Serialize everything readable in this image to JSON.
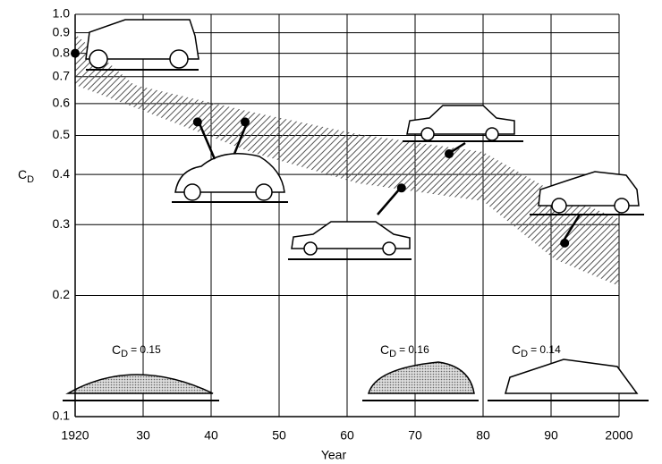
{
  "chart_data": {
    "type": "scatter",
    "x": [
      1920,
      1938,
      1945,
      1968,
      1975,
      1992
    ],
    "values": [
      0.8,
      0.54,
      0.54,
      0.37,
      0.45,
      0.27
    ],
    "color": "#000000",
    "x_label": "Year",
    "y_label": {
      "symbol": "C",
      "subscript": "D"
    },
    "xlim": [
      1920,
      2000
    ],
    "xticks": [
      1920,
      {
        "value": 1930,
        "label": "30"
      },
      {
        "value": 1940,
        "label": "40"
      },
      {
        "value": 1950,
        "label": "50"
      },
      {
        "value": 1960,
        "label": "60"
      },
      {
        "value": 1970,
        "label": "70"
      },
      {
        "value": 1980,
        "label": "80"
      },
      {
        "value": 1990,
        "label": "90"
      },
      2000
    ],
    "ylim": [
      0.1,
      1
    ],
    "yticks": [
      0.1,
      0.2,
      0.3,
      0.4,
      0.5,
      0.6,
      0.7,
      0.8,
      0.9,
      {
        "value": 1,
        "label": "1.0"
      }
    ],
    "log_y": true,
    "grid": true,
    "annotations": [
      {
        "symbol": "C",
        "subscript": "D",
        "text": "= 0.15"
      },
      {
        "symbol": "C",
        "subscript": "D",
        "text": "= 0.16"
      },
      {
        "symbol": "C",
        "subscript": "D",
        "text": "= 0.14"
      }
    ]
  }
}
